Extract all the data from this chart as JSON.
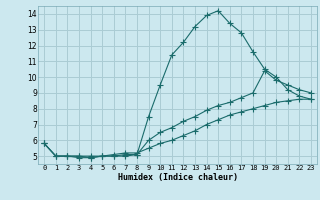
{
  "xlabel": "Humidex (Indice chaleur)",
  "bg_color": "#cce8ef",
  "grid_color": "#aaccd4",
  "line_color": "#1a6b6b",
  "xlim": [
    -0.5,
    23.5
  ],
  "ylim": [
    4.5,
    14.5
  ],
  "xticks": [
    0,
    1,
    2,
    3,
    4,
    5,
    6,
    7,
    8,
    9,
    10,
    11,
    12,
    13,
    14,
    15,
    16,
    17,
    18,
    19,
    20,
    21,
    22,
    23
  ],
  "yticks": [
    5,
    6,
    7,
    8,
    9,
    10,
    11,
    12,
    13,
    14
  ],
  "series1_x": [
    0,
    1,
    2,
    3,
    4,
    5,
    6,
    7,
    8,
    9,
    10,
    11,
    12,
    13,
    14,
    15,
    16,
    17,
    18,
    19,
    20,
    21,
    22,
    23
  ],
  "series1_y": [
    5.8,
    5.0,
    5.0,
    4.9,
    4.9,
    5.0,
    5.0,
    5.0,
    5.1,
    7.5,
    9.5,
    11.4,
    12.2,
    13.2,
    13.9,
    14.2,
    13.4,
    12.8,
    11.6,
    10.5,
    10.0,
    9.2,
    8.8,
    8.6
  ],
  "series2_x": [
    0,
    1,
    2,
    3,
    4,
    5,
    6,
    7,
    8,
    9,
    10,
    11,
    12,
    13,
    14,
    15,
    16,
    17,
    18,
    19,
    20,
    21,
    22,
    23
  ],
  "series2_y": [
    5.8,
    5.0,
    5.0,
    5.0,
    5.0,
    5.0,
    5.1,
    5.2,
    5.2,
    5.5,
    5.8,
    6.0,
    6.3,
    6.6,
    7.0,
    7.3,
    7.6,
    7.8,
    8.0,
    8.2,
    8.4,
    8.5,
    8.6,
    8.6
  ],
  "series3_x": [
    0,
    1,
    2,
    3,
    4,
    5,
    6,
    7,
    8,
    9,
    10,
    11,
    12,
    13,
    14,
    15,
    16,
    17,
    18,
    19,
    20,
    21,
    22,
    23
  ],
  "series3_y": [
    5.8,
    5.0,
    5.0,
    5.0,
    4.9,
    5.0,
    5.0,
    5.1,
    5.1,
    6.0,
    6.5,
    6.8,
    7.2,
    7.5,
    7.9,
    8.2,
    8.4,
    8.7,
    9.0,
    10.4,
    9.8,
    9.5,
    9.2,
    9.0
  ]
}
